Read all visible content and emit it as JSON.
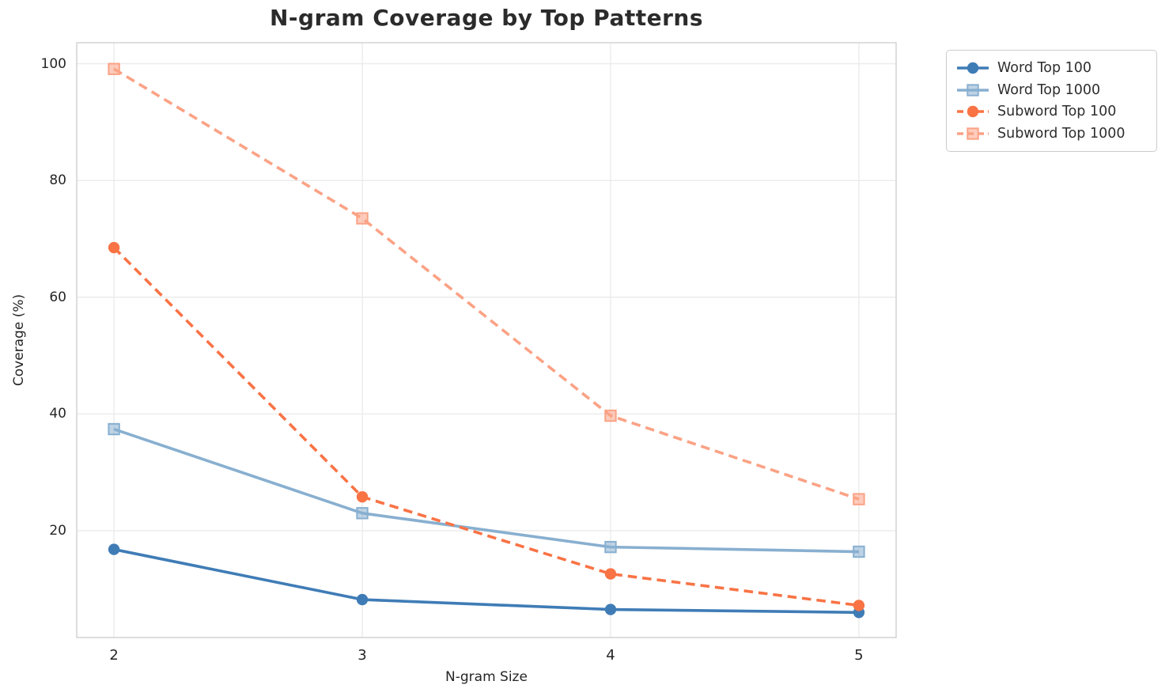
{
  "chart_data": {
    "type": "line",
    "title": "N-gram Coverage by Top Patterns",
    "xlabel": "N-gram Size",
    "ylabel": "Coverage (%)",
    "x": [
      2,
      3,
      4,
      5
    ],
    "xtick_labels": [
      "2",
      "3",
      "4",
      "5"
    ],
    "ytick_values": [
      20,
      40,
      60,
      80,
      100
    ],
    "ytick_labels": [
      "20",
      "40",
      "60",
      "80",
      "100"
    ],
    "xlim": [
      1.85,
      5.15
    ],
    "ylim": [
      1.7,
      103.6
    ],
    "grid": true,
    "legend_position": "outside-upper-right",
    "series": [
      {
        "name": "Word Top 100",
        "values": [
          16.8,
          8.2,
          6.5,
          6.0
        ],
        "color": "#3f7cb6",
        "marker": "circle",
        "line_style": "solid"
      },
      {
        "name": "Word Top 1000",
        "values": [
          37.4,
          23.0,
          17.2,
          16.4
        ],
        "color": "#88afd0",
        "marker": "square",
        "line_style": "solid"
      },
      {
        "name": "Subword Top 100",
        "values": [
          68.5,
          25.8,
          12.6,
          7.2
        ],
        "color": "#f97345",
        "marker": "circle",
        "line_style": "dashed"
      },
      {
        "name": "Subword Top 1000",
        "values": [
          99.1,
          73.5,
          39.7,
          25.4
        ],
        "color": "#fba285",
        "marker": "square",
        "line_style": "dashed"
      }
    ],
    "style": {
      "grid_color": "#ebebeb",
      "spine_color": "#d0d0d0",
      "background": "#ffffff",
      "accent_blue": "#3f7cb6",
      "accent_orange": "#f97345"
    }
  }
}
